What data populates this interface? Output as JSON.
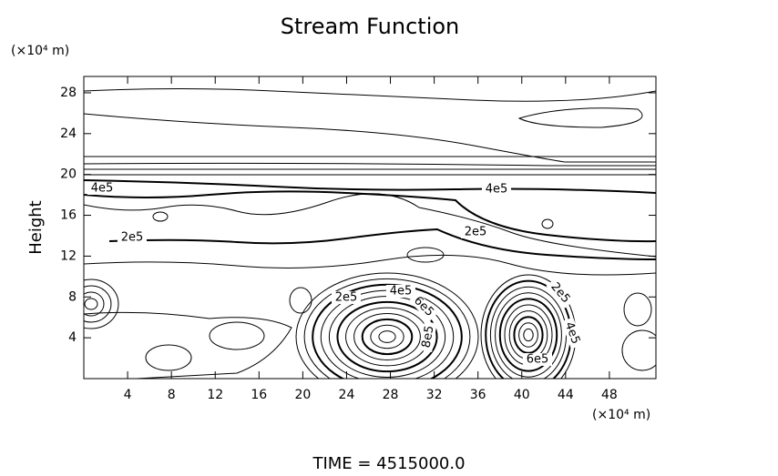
{
  "chart_data": {
    "type": "contour",
    "title": "Stream Function",
    "y_unit": "(×10⁴ m)",
    "x_unit": "(×10⁴ m)",
    "y_label": "Height",
    "time_label": "TIME = 4515000.0",
    "xlim": [
      0,
      52.25
    ],
    "ylim": [
      0,
      29.6
    ],
    "xticks": [
      4,
      8,
      12,
      16,
      20,
      24,
      28,
      32,
      36,
      40,
      44,
      48
    ],
    "yticks": [
      4,
      8,
      12,
      16,
      20,
      24,
      28
    ],
    "contour_labels": [
      "4e5",
      "2e5",
      "4e5",
      "2e5",
      "2e5",
      "4e5",
      "6e5",
      "8e5",
      "2e5",
      "4e5",
      "6e5"
    ]
  }
}
